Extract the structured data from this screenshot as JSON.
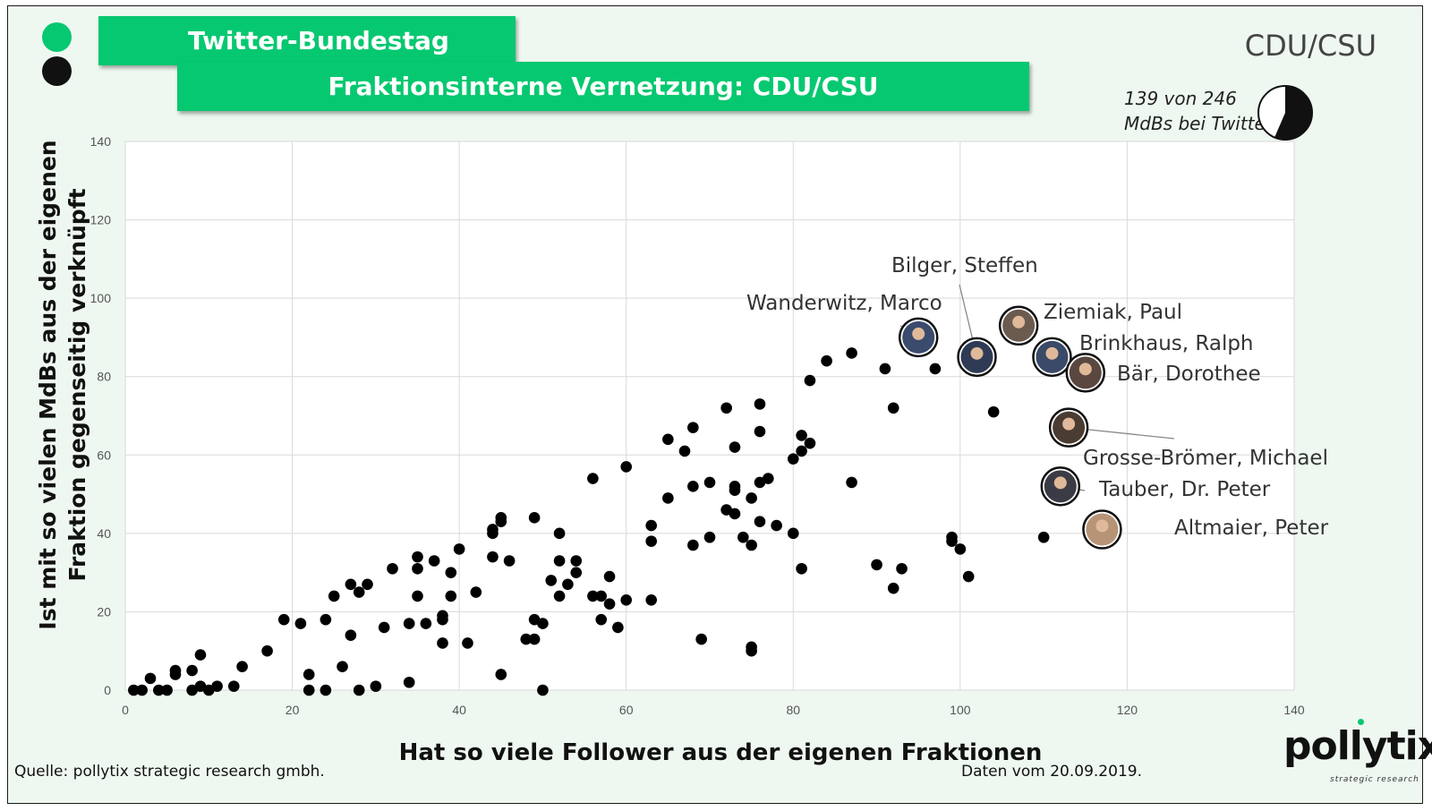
{
  "header": {
    "title": "Twitter-Bundestag",
    "subtitle": "Fraktionsinterne Vernetzung: CDU/CSU",
    "party": "CDU/CSU",
    "twitter_note_line1": "139 von 246",
    "twitter_note_line2": "MdBs bei Twitter",
    "twitter_share": 0.565
  },
  "colors": {
    "brand_green": "#06c870",
    "logo_black": "#111111",
    "background": "#eef8f0",
    "point": "#000000"
  },
  "footer": {
    "source": "Quelle: pollytix strategic research gmbh.",
    "date": "Daten vom 20.09.2019.",
    "brand": "pollytix",
    "brand_sub": "strategic research"
  },
  "chart_data": {
    "type": "scatter",
    "xlabel": "Hat so viele Follower aus der eigenen Fraktionen",
    "ylabel_line1": "Ist mit so vielen MdBs aus der eigenen",
    "ylabel_line2": "Fraktion gegenseitig verknüpft",
    "xlim": [
      0,
      140
    ],
    "ylim": [
      0,
      140
    ],
    "x_ticks": [
      "0",
      "20",
      "40",
      "60",
      "80",
      "100",
      "120",
      "140"
    ],
    "y_ticks": [
      "0",
      "20",
      "40",
      "60",
      "80",
      "100",
      "120",
      "140"
    ],
    "grid": true,
    "points": [
      [
        1,
        0
      ],
      [
        2,
        0
      ],
      [
        3,
        3
      ],
      [
        4,
        0
      ],
      [
        5,
        0
      ],
      [
        6,
        5
      ],
      [
        6,
        4
      ],
      [
        8,
        5
      ],
      [
        8,
        0
      ],
      [
        9,
        1
      ],
      [
        9,
        9
      ],
      [
        10,
        0
      ],
      [
        11,
        1
      ],
      [
        13,
        1
      ],
      [
        14,
        6
      ],
      [
        17,
        10
      ],
      [
        19,
        18
      ],
      [
        21,
        17
      ],
      [
        22,
        4
      ],
      [
        22,
        0
      ],
      [
        24,
        18
      ],
      [
        24,
        0
      ],
      [
        25,
        24
      ],
      [
        26,
        6
      ],
      [
        27,
        14
      ],
      [
        27,
        27
      ],
      [
        28,
        25
      ],
      [
        28,
        0
      ],
      [
        29,
        27
      ],
      [
        30,
        1
      ],
      [
        31,
        16
      ],
      [
        32,
        31
      ],
      [
        34,
        17
      ],
      [
        34,
        2
      ],
      [
        35,
        34
      ],
      [
        35,
        31
      ],
      [
        35,
        24
      ],
      [
        36,
        17
      ],
      [
        37,
        33
      ],
      [
        38,
        19
      ],
      [
        38,
        18
      ],
      [
        38,
        12
      ],
      [
        39,
        30
      ],
      [
        39,
        24
      ],
      [
        40,
        36
      ],
      [
        41,
        12
      ],
      [
        42,
        25
      ],
      [
        44,
        41
      ],
      [
        44,
        40
      ],
      [
        44,
        34
      ],
      [
        45,
        44
      ],
      [
        45,
        43
      ],
      [
        45,
        4
      ],
      [
        46,
        33
      ],
      [
        48,
        13
      ],
      [
        49,
        44
      ],
      [
        49,
        18
      ],
      [
        49,
        13
      ],
      [
        50,
        17
      ],
      [
        50,
        0
      ],
      [
        51,
        28
      ],
      [
        52,
        40
      ],
      [
        52,
        33
      ],
      [
        52,
        24
      ],
      [
        53,
        27
      ],
      [
        54,
        33
      ],
      [
        54,
        30
      ],
      [
        56,
        54
      ],
      [
        56,
        24
      ],
      [
        57,
        24
      ],
      [
        57,
        18
      ],
      [
        58,
        29
      ],
      [
        58,
        22
      ],
      [
        59,
        16
      ],
      [
        60,
        57
      ],
      [
        60,
        23
      ],
      [
        63,
        42
      ],
      [
        63,
        38
      ],
      [
        63,
        23
      ],
      [
        65,
        64
      ],
      [
        65,
        49
      ],
      [
        67,
        61
      ],
      [
        68,
        67
      ],
      [
        68,
        52
      ],
      [
        68,
        37
      ],
      [
        69,
        13
      ],
      [
        70,
        53
      ],
      [
        70,
        39
      ],
      [
        72,
        72
      ],
      [
        72,
        46
      ],
      [
        73,
        62
      ],
      [
        73,
        52
      ],
      [
        73,
        51
      ],
      [
        73,
        45
      ],
      [
        74,
        39
      ],
      [
        75,
        49
      ],
      [
        75,
        37
      ],
      [
        75,
        11
      ],
      [
        75,
        10
      ],
      [
        76,
        73
      ],
      [
        76,
        66
      ],
      [
        76,
        53
      ],
      [
        76,
        43
      ],
      [
        77,
        54
      ],
      [
        78,
        42
      ],
      [
        80,
        59
      ],
      [
        80,
        40
      ],
      [
        81,
        65
      ],
      [
        81,
        61
      ],
      [
        81,
        31
      ],
      [
        82,
        79
      ],
      [
        82,
        63
      ],
      [
        84,
        84
      ],
      [
        87,
        86
      ],
      [
        87,
        53
      ],
      [
        90,
        32
      ],
      [
        91,
        82
      ],
      [
        92,
        72
      ],
      [
        92,
        26
      ],
      [
        93,
        31
      ],
      [
        97,
        82
      ],
      [
        99,
        39
      ],
      [
        99,
        38
      ],
      [
        100,
        36
      ],
      [
        101,
        29
      ],
      [
        104,
        71
      ],
      [
        110,
        39
      ]
    ],
    "annotations": [
      {
        "label": "Wanderwitz, Marco",
        "x": 95,
        "y": 90
      },
      {
        "label": "Bilger, Steffen",
        "x": 102,
        "y": 85
      },
      {
        "label": "Ziemiak, Paul",
        "x": 107,
        "y": 93
      },
      {
        "label": "Brinkhaus, Ralph",
        "x": 111,
        "y": 85
      },
      {
        "label": "Bär, Dorothee",
        "x": 115,
        "y": 81
      },
      {
        "label": "Grosse-Brömer, Michael",
        "x": 113,
        "y": 67
      },
      {
        "label": "Tauber, Dr. Peter",
        "x": 112,
        "y": 52
      },
      {
        "label": "Altmaier, Peter",
        "x": 117,
        "y": 41
      }
    ]
  }
}
